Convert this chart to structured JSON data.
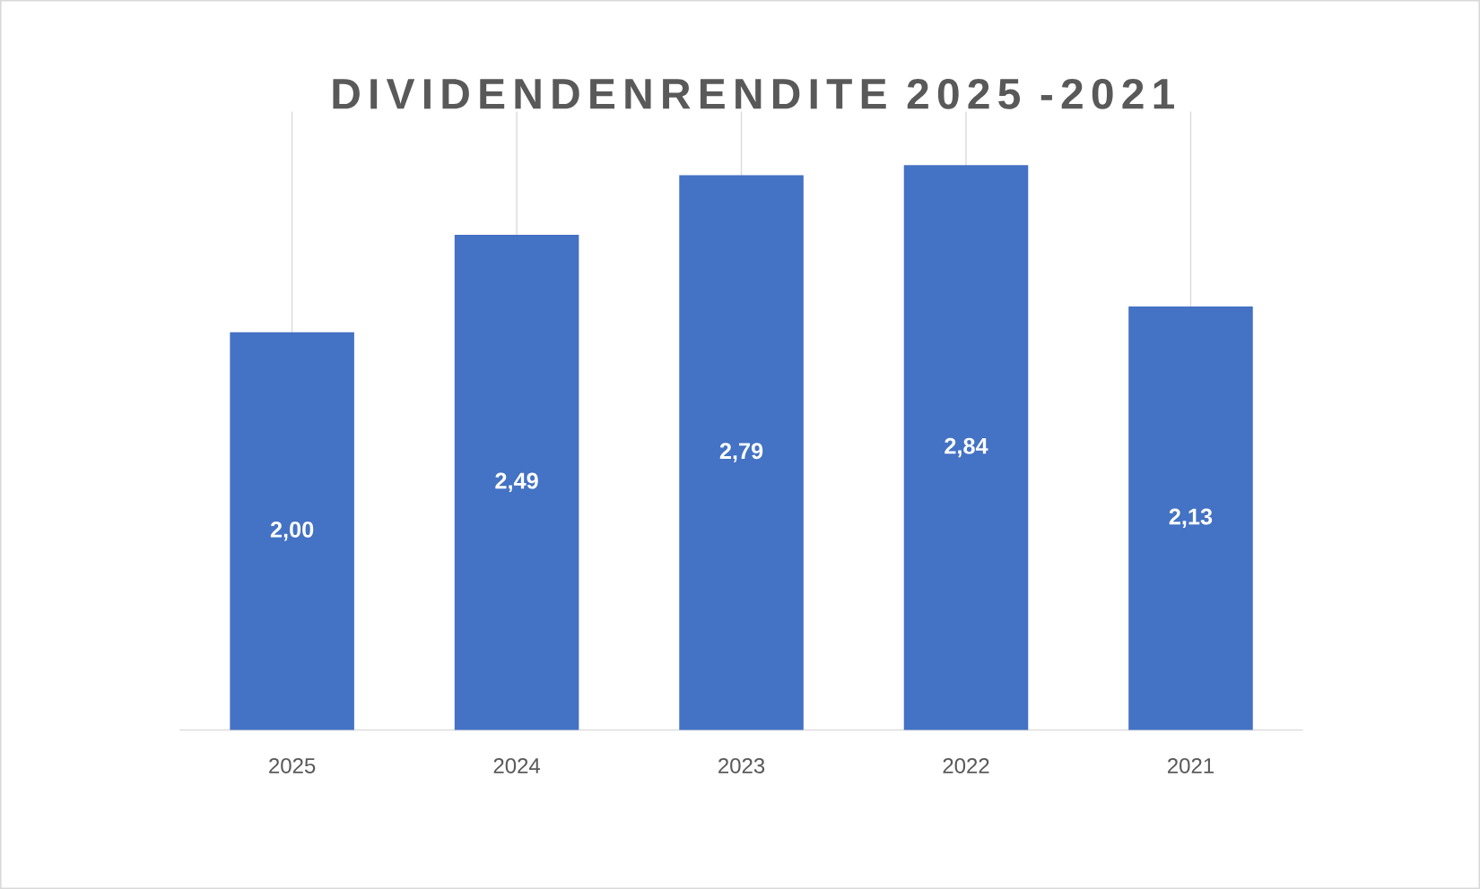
{
  "chart_data": {
    "type": "bar",
    "title": "DIVIDENDENRENDITE 2025 -2021",
    "categories": [
      "2025",
      "2024",
      "2023",
      "2022",
      "2021"
    ],
    "values": [
      2.0,
      2.49,
      2.79,
      2.84,
      2.13
    ],
    "value_labels": [
      "2,00",
      "2,49",
      "2,79",
      "2,84",
      "2,13"
    ],
    "color": "#4472c4",
    "grid": "x"
  }
}
